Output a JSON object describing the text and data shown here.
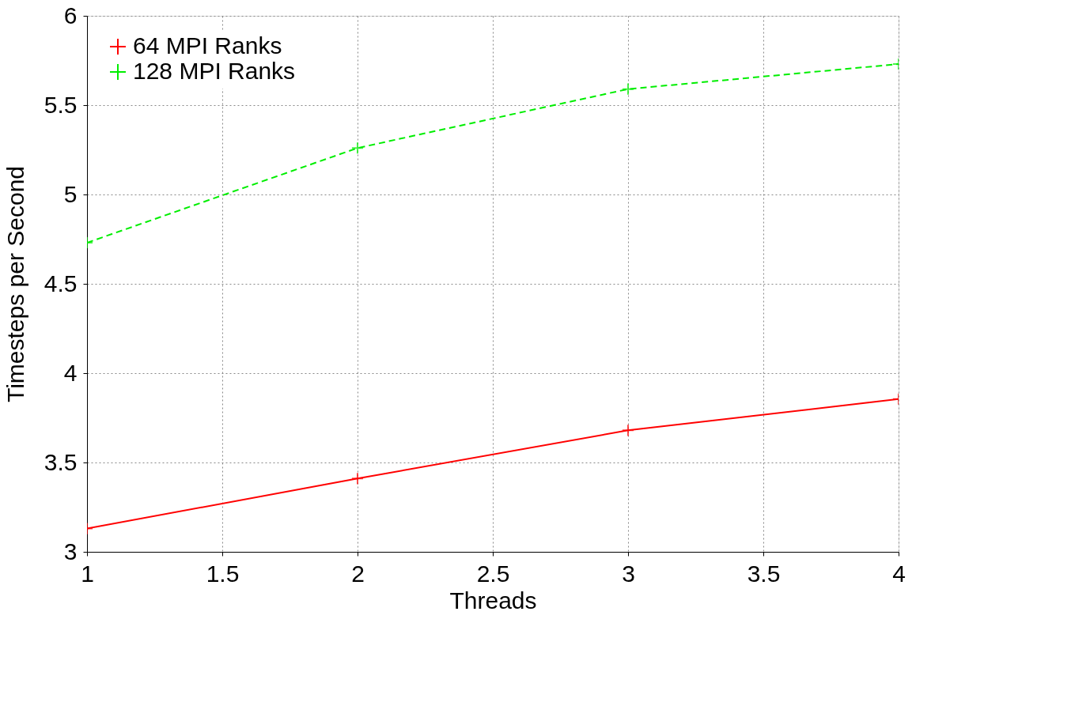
{
  "chart_data": {
    "type": "line",
    "xlabel": "Threads",
    "ylabel": "Timesteps per Second",
    "x": [
      1,
      2,
      3,
      4
    ],
    "series": [
      {
        "name": "64 MPI Ranks",
        "color": "#ff0000",
        "values": [
          3.13,
          3.41,
          3.68,
          3.855
        ],
        "line_style": "solid",
        "marker": "cross"
      },
      {
        "name": "128 MPI Ranks",
        "color": "#00ee00",
        "values": [
          4.73,
          5.26,
          5.59,
          5.73
        ],
        "line_style": "dashed",
        "marker": "cross"
      }
    ],
    "xlim": [
      1,
      4
    ],
    "xticks": [
      1,
      1.5,
      2,
      2.5,
      3,
      3.5,
      4
    ],
    "ylim": [
      3,
      6
    ],
    "yticks": [
      3,
      3.5,
      4,
      4.5,
      5,
      5.5,
      6
    ],
    "grid": true,
    "legend": "top left"
  }
}
